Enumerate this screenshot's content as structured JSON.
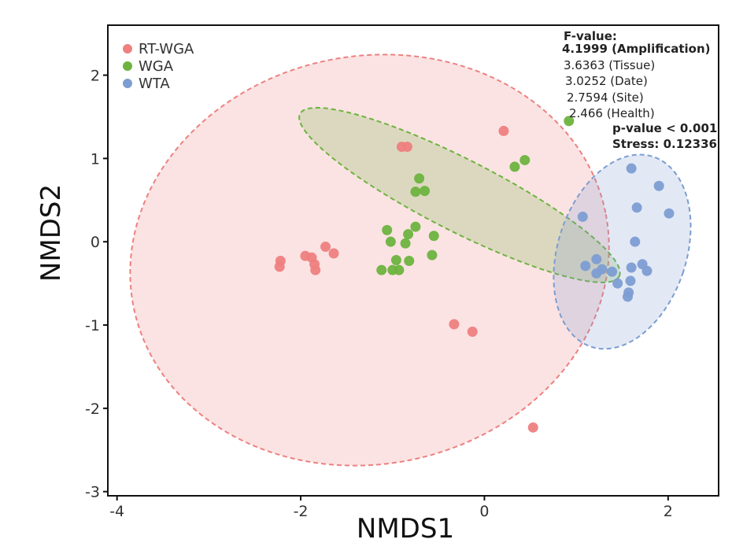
{
  "chart_data": {
    "type": "scatter",
    "title": "",
    "xlabel": "NMDS1",
    "ylabel": "NMDS2",
    "xlim": [
      -4.1,
      2.55
    ],
    "ylim": [
      -3.05,
      2.6
    ],
    "x_ticks": [
      -4,
      -2,
      0,
      2
    ],
    "y_ticks": [
      2,
      1,
      0,
      -1,
      -2,
      -3
    ],
    "legend": {
      "location": "top-left",
      "entries": [
        {
          "label": "RT-WGA",
          "color": "#ee8080"
        },
        {
          "label": "WGA",
          "color": "#6db33f"
        },
        {
          "label": "WTA",
          "color": "#7d9dd2"
        }
      ]
    },
    "series": [
      {
        "name": "RT-WGA",
        "color": "#ee8080",
        "points": [
          {
            "x": -2.22,
            "y": -0.23
          },
          {
            "x": -2.23,
            "y": -0.3
          },
          {
            "x": -1.95,
            "y": -0.17
          },
          {
            "x": -1.88,
            "y": -0.19
          },
          {
            "x": -1.85,
            "y": -0.27
          },
          {
            "x": -1.84,
            "y": -0.34
          },
          {
            "x": -1.73,
            "y": -0.06
          },
          {
            "x": -1.64,
            "y": -0.14
          },
          {
            "x": -0.9,
            "y": 1.14
          },
          {
            "x": -0.84,
            "y": 1.14
          },
          {
            "x": 0.21,
            "y": 1.33
          },
          {
            "x": -0.33,
            "y": -0.99
          },
          {
            "x": -0.13,
            "y": -1.08
          },
          {
            "x": 0.53,
            "y": -2.23
          }
        ],
        "ellipse": {
          "cx": -1.25,
          "cy": -0.22,
          "rx": 2.62,
          "ry": 2.45,
          "rotation_deg": -11
        }
      },
      {
        "name": "WGA",
        "color": "#6db33f",
        "points": [
          {
            "x": 0.92,
            "y": 1.45
          },
          {
            "x": 0.44,
            "y": 0.98
          },
          {
            "x": 0.33,
            "y": 0.9
          },
          {
            "x": -0.71,
            "y": 0.76
          },
          {
            "x": -0.65,
            "y": 0.61
          },
          {
            "x": -0.75,
            "y": 0.6
          },
          {
            "x": -0.75,
            "y": 0.18
          },
          {
            "x": -1.06,
            "y": 0.14
          },
          {
            "x": -0.83,
            "y": 0.09
          },
          {
            "x": -0.55,
            "y": 0.07
          },
          {
            "x": -1.02,
            "y": 0.0
          },
          {
            "x": -0.86,
            "y": -0.02
          },
          {
            "x": -0.57,
            "y": -0.16
          },
          {
            "x": -0.96,
            "y": -0.22
          },
          {
            "x": -0.82,
            "y": -0.23
          },
          {
            "x": -1.12,
            "y": -0.34
          },
          {
            "x": -1.0,
            "y": -0.34
          },
          {
            "x": -0.93,
            "y": -0.34
          }
        ],
        "ellipse": {
          "cx": -0.27,
          "cy": 0.56,
          "rx": 1.95,
          "ry": 0.43,
          "rotation_deg": 27
        }
      },
      {
        "name": "WTA",
        "color": "#7d9dd2",
        "points": [
          {
            "x": 1.6,
            "y": 0.88
          },
          {
            "x": 1.9,
            "y": 0.67
          },
          {
            "x": 1.66,
            "y": 0.41
          },
          {
            "x": 2.01,
            "y": 0.34
          },
          {
            "x": 1.07,
            "y": 0.3
          },
          {
            "x": 1.64,
            "y": 0.0
          },
          {
            "x": 1.22,
            "y": -0.21
          },
          {
            "x": 1.1,
            "y": -0.29
          },
          {
            "x": 1.28,
            "y": -0.33
          },
          {
            "x": 1.22,
            "y": -0.38
          },
          {
            "x": 1.39,
            "y": -0.36
          },
          {
            "x": 1.6,
            "y": -0.31
          },
          {
            "x": 1.72,
            "y": -0.27
          },
          {
            "x": 1.77,
            "y": -0.35
          },
          {
            "x": 1.59,
            "y": -0.47
          },
          {
            "x": 1.45,
            "y": -0.5
          },
          {
            "x": 1.57,
            "y": -0.61
          },
          {
            "x": 1.56,
            "y": -0.66
          }
        ],
        "ellipse": {
          "cx": 1.5,
          "cy": -0.12,
          "rx": 0.7,
          "ry": 1.2,
          "rotation_deg": 18
        }
      }
    ],
    "annotations": {
      "f_header": "F-value:",
      "f_values": [
        {
          "text": "4.1999 (Amplification)",
          "bold": true
        },
        {
          "text": "3.6363 (Tissue)",
          "bold": false
        },
        {
          "text": "3.0252 (Date)",
          "bold": false
        },
        {
          "text": "2.7594 (Site)",
          "bold": false
        },
        {
          "text": "2.466 (Health)",
          "bold": false
        }
      ],
      "p_value": "p-value < 0.001",
      "stress": "Stress: 0.12336"
    }
  }
}
